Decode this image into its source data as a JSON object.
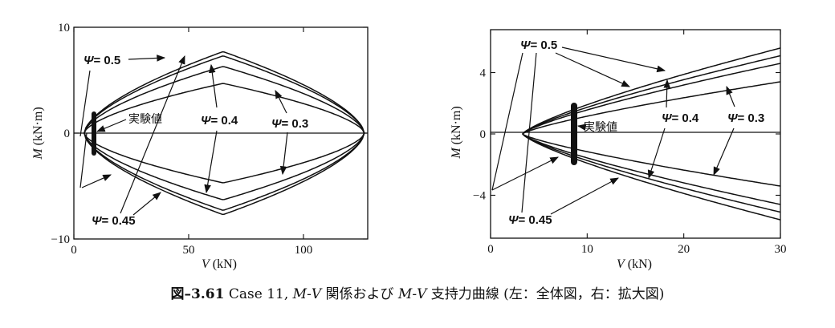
{
  "caption": {
    "fig_no": "図–3.61",
    "text_a": " Case 11, ",
    "m1": "M",
    "dash1": "-",
    "v1": "V",
    "text_b": " 関係および ",
    "m2": "M",
    "dash2": "-",
    "v2": "V",
    "text_c": " 支持力曲線 (左：全体図，右：拡大図)"
  },
  "chart_data": [
    {
      "type": "line",
      "panel": "left",
      "xlabel": "V (kN)",
      "ylabel": "M (kN·m)",
      "xlim": [
        0,
        128
      ],
      "ylim": [
        -10,
        10
      ],
      "xticks": [
        0,
        50,
        100
      ],
      "yticks": [
        -10,
        0,
        10
      ],
      "v_range": [
        4.5,
        126.5
      ],
      "v_peak": 65,
      "series": [
        {
          "label": "Ψ= 0.5",
          "peak_moment": 7.7
        },
        {
          "label": "Ψ= 0.45",
          "peak_moment": 7.3
        },
        {
          "label": "Ψ= 0.4",
          "peak_moment": 6.3
        },
        {
          "label": "Ψ= 0.3",
          "peak_moment": 4.7
        }
      ],
      "experiment": {
        "label": "実験値",
        "v": 9,
        "m_range": [
          -1.8,
          1.6
        ]
      },
      "annotations": [
        "Ψ= 0.5",
        "Ψ= 0.4",
        "Ψ= 0.3",
        "Ψ= 0.45",
        "実験値"
      ]
    },
    {
      "type": "line",
      "panel": "right",
      "xlabel": "V (kN)",
      "ylabel": "M (kN·m)",
      "xlim": [
        0,
        30
      ],
      "ylim": [
        -6.8,
        6.8
      ],
      "xticks": [
        0,
        10,
        20,
        30
      ],
      "yticks": [
        -4,
        0,
        4
      ],
      "series": [
        {
          "label": "Ψ= 0.5",
          "m_at_30": 5.6
        },
        {
          "label": "Ψ= 0.45",
          "m_at_30": 5.1
        },
        {
          "label": "Ψ= 0.4",
          "m_at_30": 4.6
        },
        {
          "label": "Ψ= 0.3",
          "m_at_30": 3.4
        }
      ],
      "experiment": {
        "label": "実験値",
        "v": 8.7,
        "m_range": [
          -2.0,
          1.7
        ]
      },
      "annotations": [
        "Ψ= 0.5",
        "Ψ= 0.4",
        "Ψ= 0.3",
        "Ψ= 0.45",
        "実験値"
      ]
    }
  ]
}
